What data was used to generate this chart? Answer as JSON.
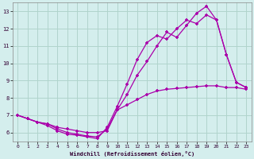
{
  "xlabel": "Windchill (Refroidissement éolien,°C)",
  "bg_color": "#d4eeed",
  "line_color": "#aa00aa",
  "grid_color": "#b0d4cc",
  "xlim": [
    -0.5,
    23.5
  ],
  "ylim": [
    5.5,
    13.5
  ],
  "xticks": [
    0,
    1,
    2,
    3,
    4,
    5,
    6,
    7,
    8,
    9,
    10,
    11,
    12,
    13,
    14,
    15,
    16,
    17,
    18,
    19,
    20,
    21,
    22,
    23
  ],
  "yticks": [
    6,
    7,
    8,
    9,
    10,
    11,
    12,
    13
  ],
  "line1_x": [
    0,
    1,
    2,
    3,
    4,
    5,
    6,
    7,
    8,
    9,
    10,
    11,
    12,
    13,
    14,
    15,
    16,
    17,
    18,
    19,
    20,
    21,
    22,
    23
  ],
  "line1_y": [
    7.0,
    6.8,
    6.6,
    6.5,
    6.2,
    6.0,
    5.9,
    5.8,
    5.75,
    6.2,
    7.3,
    8.2,
    9.3,
    10.1,
    11.0,
    11.8,
    11.5,
    12.2,
    12.9,
    13.3,
    12.5,
    10.5,
    8.9,
    8.6
  ],
  "line2_x": [
    0,
    1,
    2,
    3,
    4,
    5,
    6,
    7,
    8,
    9,
    10,
    11,
    12,
    13,
    14,
    15,
    16,
    17,
    18,
    19,
    20,
    21,
    22,
    23
  ],
  "line2_y": [
    7.0,
    6.8,
    6.6,
    6.4,
    6.1,
    5.9,
    5.85,
    5.75,
    5.65,
    6.3,
    7.5,
    8.8,
    10.2,
    11.2,
    11.6,
    11.4,
    12.0,
    12.5,
    12.3,
    12.8,
    12.5,
    10.5,
    8.9,
    8.6
  ],
  "line3_x": [
    0,
    1,
    2,
    3,
    4,
    5,
    6,
    7,
    8,
    9,
    10,
    11,
    12,
    13,
    14,
    15,
    16,
    17,
    18,
    19,
    20,
    21,
    22,
    23
  ],
  "line3_y": [
    7.0,
    6.8,
    6.6,
    6.5,
    6.3,
    6.2,
    6.1,
    6.0,
    6.0,
    6.1,
    7.3,
    7.6,
    7.9,
    8.2,
    8.4,
    8.5,
    8.55,
    8.6,
    8.65,
    8.7,
    8.7,
    8.6,
    8.6,
    8.5
  ]
}
